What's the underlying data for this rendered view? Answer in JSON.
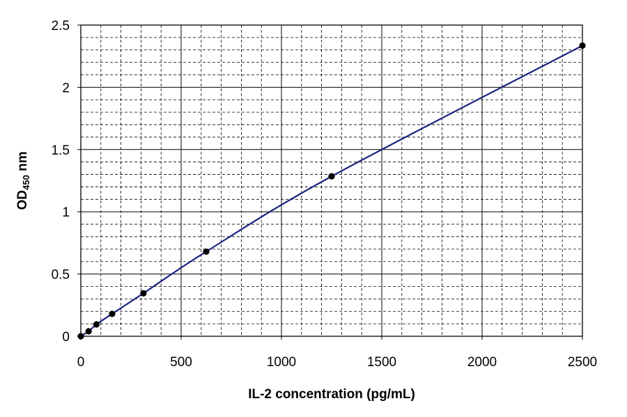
{
  "chart_data": {
    "type": "scatter",
    "title": "",
    "xlabel": "IL-2 concentration (pg/mL)",
    "ylabel": {
      "main": "OD",
      "subscript": "450",
      "suffix": " nm"
    },
    "xlim": [
      0,
      2500
    ],
    "ylim": [
      0,
      2.5
    ],
    "x_ticks": [
      "0",
      "500",
      "1000",
      "1500",
      "2000",
      "2500"
    ],
    "y_ticks": [
      "0",
      "0.5",
      "1",
      "1.5",
      "2",
      "2.5"
    ],
    "grid": {
      "major": true,
      "minor": true,
      "major_style": "solid",
      "minor_style": "dashed",
      "x_minor_step": 100,
      "y_minor_step": 0.1
    },
    "series": [
      {
        "marker": "circle",
        "marker_color": "#000000",
        "line_color": "#1a237e",
        "fit": "smooth-curve",
        "points": [
          {
            "x": 0,
            "y": 0.0
          },
          {
            "x": 39,
            "y": 0.04
          },
          {
            "x": 78,
            "y": 0.095
          },
          {
            "x": 156,
            "y": 0.18
          },
          {
            "x": 312,
            "y": 0.345
          },
          {
            "x": 625,
            "y": 0.68
          },
          {
            "x": 1250,
            "y": 1.285
          },
          {
            "x": 2500,
            "y": 2.335
          }
        ]
      }
    ]
  }
}
